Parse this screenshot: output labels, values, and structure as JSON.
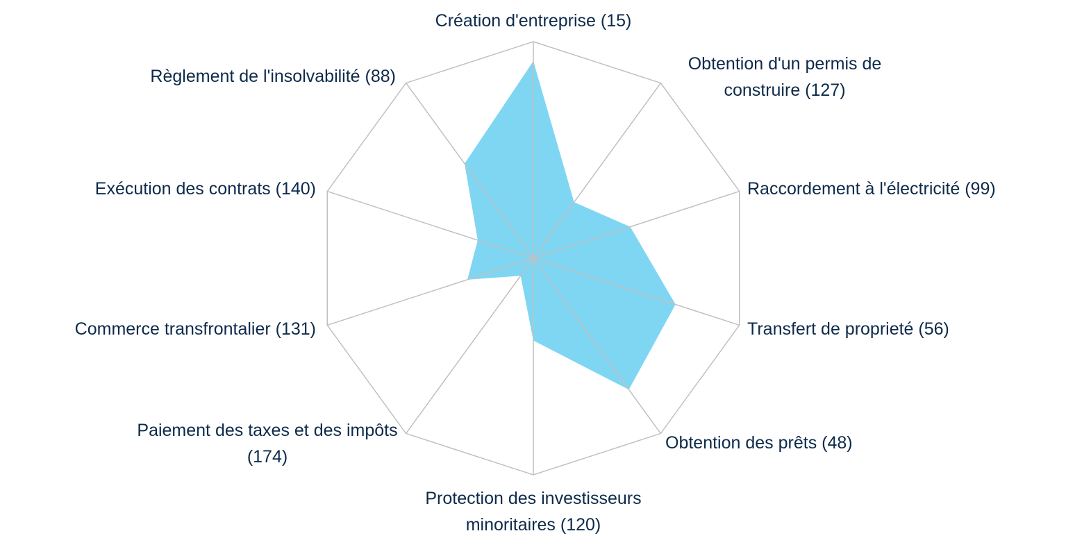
{
  "chart_data": {
    "type": "radar",
    "categories": [
      "Création d'entreprise (15)",
      "Obtention d'un permis de construire (127)",
      "Raccordement à l'électricité (99)",
      "Transfert de proprieté (56)",
      "Obtention des prêts (48)",
      "Protection des investisseurs minoritaires (120)",
      "Paiement des taxes et des impôts (174)",
      "Commerce transfrontalier (131)",
      "Exécution des contrats (140)",
      "Règlement de l'insolvabilité (88)"
    ],
    "values": [
      91,
      32,
      47,
      69,
      75,
      38,
      10,
      32,
      27,
      54
    ],
    "color": "#00aee6",
    "rlim": [
      0,
      100
    ],
    "grid": true
  }
}
